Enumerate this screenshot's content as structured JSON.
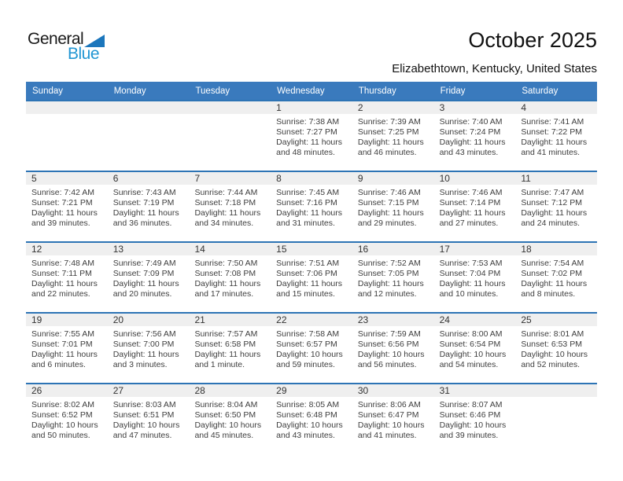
{
  "logo": {
    "general": "General",
    "blue": "Blue"
  },
  "header": {
    "title": "October 2025",
    "location": "Elizabethtown, Kentucky, United States"
  },
  "colors": {
    "header_bar": "#3a7abd",
    "row_divider": "#2d74b5",
    "day_band": "#efefef",
    "logo_blue": "#2196d3",
    "logo_triangle": "#1b76bc"
  },
  "calendar": {
    "weekdays": [
      "Sunday",
      "Monday",
      "Tuesday",
      "Wednesday",
      "Thursday",
      "Friday",
      "Saturday"
    ],
    "weeks": [
      [
        null,
        null,
        null,
        {
          "day": "1",
          "sunrise": "Sunrise: 7:38 AM",
          "sunset": "Sunset: 7:27 PM",
          "daylight": [
            "Daylight: 11 hours",
            "and 48 minutes."
          ]
        },
        {
          "day": "2",
          "sunrise": "Sunrise: 7:39 AM",
          "sunset": "Sunset: 7:25 PM",
          "daylight": [
            "Daylight: 11 hours",
            "and 46 minutes."
          ]
        },
        {
          "day": "3",
          "sunrise": "Sunrise: 7:40 AM",
          "sunset": "Sunset: 7:24 PM",
          "daylight": [
            "Daylight: 11 hours",
            "and 43 minutes."
          ]
        },
        {
          "day": "4",
          "sunrise": "Sunrise: 7:41 AM",
          "sunset": "Sunset: 7:22 PM",
          "daylight": [
            "Daylight: 11 hours",
            "and 41 minutes."
          ]
        }
      ],
      [
        {
          "day": "5",
          "sunrise": "Sunrise: 7:42 AM",
          "sunset": "Sunset: 7:21 PM",
          "daylight": [
            "Daylight: 11 hours",
            "and 39 minutes."
          ]
        },
        {
          "day": "6",
          "sunrise": "Sunrise: 7:43 AM",
          "sunset": "Sunset: 7:19 PM",
          "daylight": [
            "Daylight: 11 hours",
            "and 36 minutes."
          ]
        },
        {
          "day": "7",
          "sunrise": "Sunrise: 7:44 AM",
          "sunset": "Sunset: 7:18 PM",
          "daylight": [
            "Daylight: 11 hours",
            "and 34 minutes."
          ]
        },
        {
          "day": "8",
          "sunrise": "Sunrise: 7:45 AM",
          "sunset": "Sunset: 7:16 PM",
          "daylight": [
            "Daylight: 11 hours",
            "and 31 minutes."
          ]
        },
        {
          "day": "9",
          "sunrise": "Sunrise: 7:46 AM",
          "sunset": "Sunset: 7:15 PM",
          "daylight": [
            "Daylight: 11 hours",
            "and 29 minutes."
          ]
        },
        {
          "day": "10",
          "sunrise": "Sunrise: 7:46 AM",
          "sunset": "Sunset: 7:14 PM",
          "daylight": [
            "Daylight: 11 hours",
            "and 27 minutes."
          ]
        },
        {
          "day": "11",
          "sunrise": "Sunrise: 7:47 AM",
          "sunset": "Sunset: 7:12 PM",
          "daylight": [
            "Daylight: 11 hours",
            "and 24 minutes."
          ]
        }
      ],
      [
        {
          "day": "12",
          "sunrise": "Sunrise: 7:48 AM",
          "sunset": "Sunset: 7:11 PM",
          "daylight": [
            "Daylight: 11 hours",
            "and 22 minutes."
          ]
        },
        {
          "day": "13",
          "sunrise": "Sunrise: 7:49 AM",
          "sunset": "Sunset: 7:09 PM",
          "daylight": [
            "Daylight: 11 hours",
            "and 20 minutes."
          ]
        },
        {
          "day": "14",
          "sunrise": "Sunrise: 7:50 AM",
          "sunset": "Sunset: 7:08 PM",
          "daylight": [
            "Daylight: 11 hours",
            "and 17 minutes."
          ]
        },
        {
          "day": "15",
          "sunrise": "Sunrise: 7:51 AM",
          "sunset": "Sunset: 7:06 PM",
          "daylight": [
            "Daylight: 11 hours",
            "and 15 minutes."
          ]
        },
        {
          "day": "16",
          "sunrise": "Sunrise: 7:52 AM",
          "sunset": "Sunset: 7:05 PM",
          "daylight": [
            "Daylight: 11 hours",
            "and 12 minutes."
          ]
        },
        {
          "day": "17",
          "sunrise": "Sunrise: 7:53 AM",
          "sunset": "Sunset: 7:04 PM",
          "daylight": [
            "Daylight: 11 hours",
            "and 10 minutes."
          ]
        },
        {
          "day": "18",
          "sunrise": "Sunrise: 7:54 AM",
          "sunset": "Sunset: 7:02 PM",
          "daylight": [
            "Daylight: 11 hours",
            "and 8 minutes."
          ]
        }
      ],
      [
        {
          "day": "19",
          "sunrise": "Sunrise: 7:55 AM",
          "sunset": "Sunset: 7:01 PM",
          "daylight": [
            "Daylight: 11 hours",
            "and 6 minutes."
          ]
        },
        {
          "day": "20",
          "sunrise": "Sunrise: 7:56 AM",
          "sunset": "Sunset: 7:00 PM",
          "daylight": [
            "Daylight: 11 hours",
            "and 3 minutes."
          ]
        },
        {
          "day": "21",
          "sunrise": "Sunrise: 7:57 AM",
          "sunset": "Sunset: 6:58 PM",
          "daylight": [
            "Daylight: 11 hours",
            "and 1 minute."
          ]
        },
        {
          "day": "22",
          "sunrise": "Sunrise: 7:58 AM",
          "sunset": "Sunset: 6:57 PM",
          "daylight": [
            "Daylight: 10 hours",
            "and 59 minutes."
          ]
        },
        {
          "day": "23",
          "sunrise": "Sunrise: 7:59 AM",
          "sunset": "Sunset: 6:56 PM",
          "daylight": [
            "Daylight: 10 hours",
            "and 56 minutes."
          ]
        },
        {
          "day": "24",
          "sunrise": "Sunrise: 8:00 AM",
          "sunset": "Sunset: 6:54 PM",
          "daylight": [
            "Daylight: 10 hours",
            "and 54 minutes."
          ]
        },
        {
          "day": "25",
          "sunrise": "Sunrise: 8:01 AM",
          "sunset": "Sunset: 6:53 PM",
          "daylight": [
            "Daylight: 10 hours",
            "and 52 minutes."
          ]
        }
      ],
      [
        {
          "day": "26",
          "sunrise": "Sunrise: 8:02 AM",
          "sunset": "Sunset: 6:52 PM",
          "daylight": [
            "Daylight: 10 hours",
            "and 50 minutes."
          ]
        },
        {
          "day": "27",
          "sunrise": "Sunrise: 8:03 AM",
          "sunset": "Sunset: 6:51 PM",
          "daylight": [
            "Daylight: 10 hours",
            "and 47 minutes."
          ]
        },
        {
          "day": "28",
          "sunrise": "Sunrise: 8:04 AM",
          "sunset": "Sunset: 6:50 PM",
          "daylight": [
            "Daylight: 10 hours",
            "and 45 minutes."
          ]
        },
        {
          "day": "29",
          "sunrise": "Sunrise: 8:05 AM",
          "sunset": "Sunset: 6:48 PM",
          "daylight": [
            "Daylight: 10 hours",
            "and 43 minutes."
          ]
        },
        {
          "day": "30",
          "sunrise": "Sunrise: 8:06 AM",
          "sunset": "Sunset: 6:47 PM",
          "daylight": [
            "Daylight: 10 hours",
            "and 41 minutes."
          ]
        },
        {
          "day": "31",
          "sunrise": "Sunrise: 8:07 AM",
          "sunset": "Sunset: 6:46 PM",
          "daylight": [
            "Daylight: 10 hours",
            "and 39 minutes."
          ]
        },
        null
      ]
    ]
  }
}
